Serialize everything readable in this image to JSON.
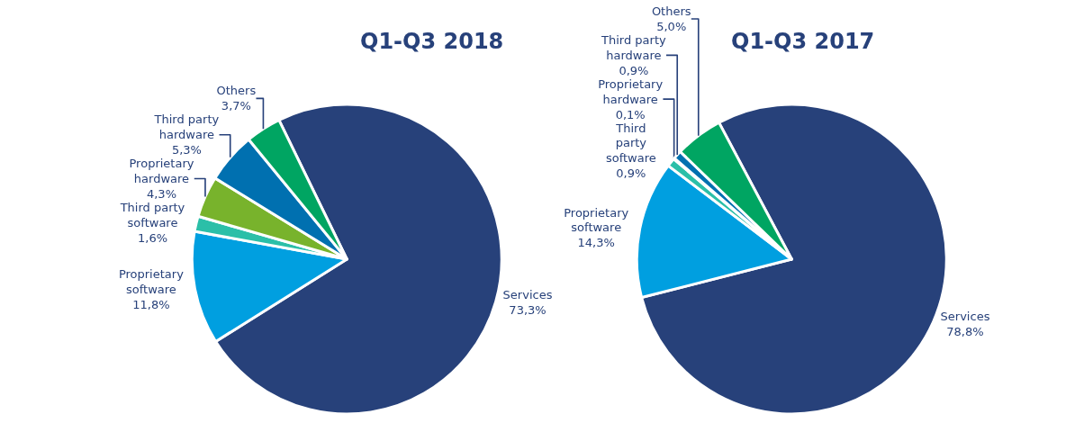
{
  "chart_data": [
    {
      "type": "pie",
      "title": "Q1-Q3 2018",
      "categories": [
        "Services",
        "Proprietary\nsoftware",
        "Third party\nsoftware",
        "Proprietary\nhardware",
        "Third party\nhardware",
        "Others"
      ],
      "values": [
        73.3,
        11.8,
        1.6,
        4.3,
        5.3,
        3.7
      ],
      "value_labels": [
        "73,3%",
        "11,8%",
        "1,6%",
        "4,3%",
        "5,3%",
        "3,7%"
      ],
      "colors": [
        "#27417a",
        "#009fe0",
        "#2bbfa8",
        "#78b32c",
        "#0070b0",
        "#00a562"
      ]
    },
    {
      "type": "pie",
      "title": "Q1-Q3 2017",
      "categories": [
        "Services",
        "Proprietary\nsoftware",
        "Third\nparty\nsoftware",
        "Proprietary\nhardware",
        "Third party\nhardware",
        "Others"
      ],
      "values": [
        78.8,
        14.3,
        0.9,
        0.1,
        0.9,
        5.0
      ],
      "value_labels": [
        "78,8%",
        "14,3%",
        "0,9%",
        "0,1%",
        "0,9%",
        "5,0%"
      ],
      "colors": [
        "#27417a",
        "#009fe0",
        "#2bbfa8",
        "#78b32c",
        "#0070b0",
        "#00a562"
      ]
    }
  ]
}
